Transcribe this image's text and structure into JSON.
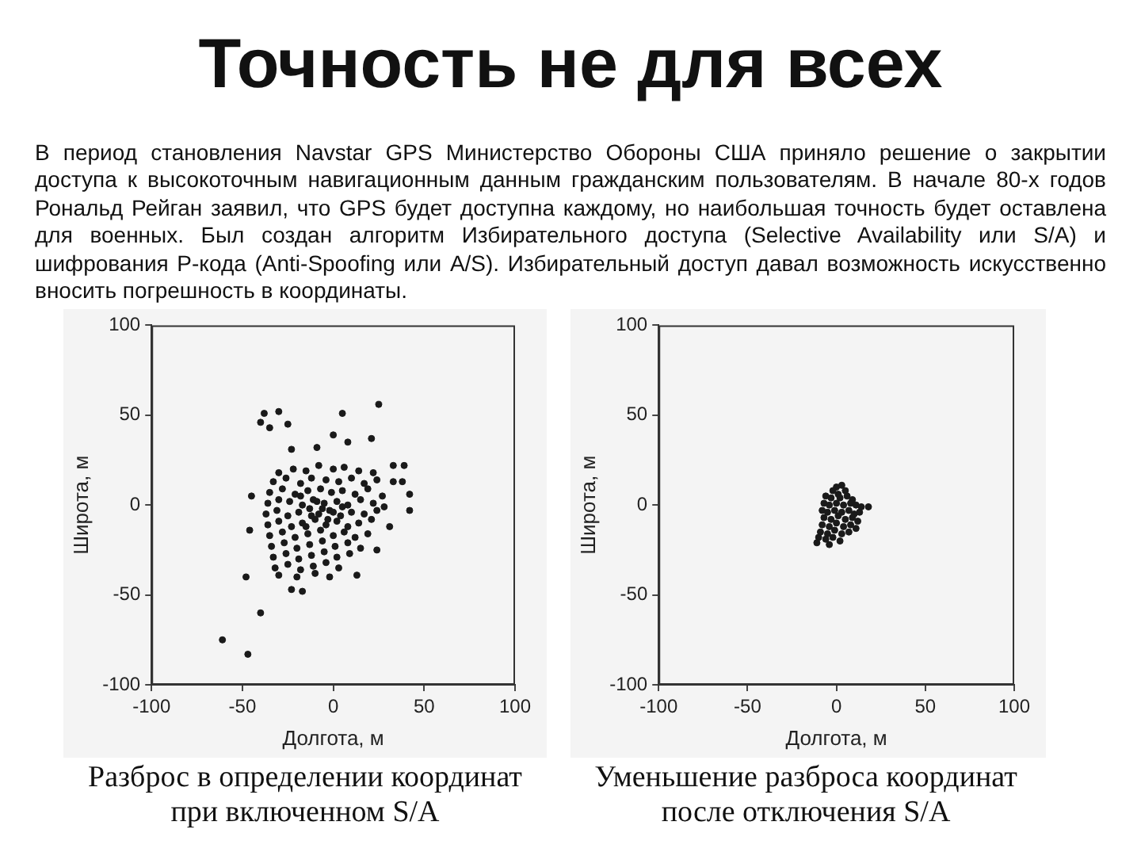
{
  "chart_data": [
    {
      "type": "other",
      "title": "Точность не для всех",
      "annotations": [
        "В период становления Navstar GPS Министерство Обороны США приняло решение о закрытии доступа к высокоточным навигационным данным гражданским пользователям. В начале 80-х годов Рональд Рейган заявил, что GPS будет доступна каждому, но наибольшая точность будет оставлена для военных. Был создан алгоритм Избирательного доступа (Selective Availability или S/A) и шифрования Р-кода (Anti-Spoofing или A/S). Избирательный доступ давал возможность искусственно вносить погрешность в координаты."
      ]
    },
    {
      "type": "scatter",
      "xlabel": "Долгота, м",
      "ylabel": "Широта, м",
      "xlim": [
        -100,
        100
      ],
      "ylim": [
        -100,
        100
      ],
      "xticks": [
        -100,
        -50,
        0,
        50,
        100
      ],
      "yticks": [
        -100,
        -50,
        0,
        50,
        100
      ],
      "marker": "circle",
      "annotations": [
        "Разброс в определении координат при включенном S/A"
      ],
      "series": [
        {
          "color": "#1a1a1a",
          "x": [
            -38,
            -30,
            -40,
            -35,
            -25,
            5,
            25,
            21,
            0,
            8,
            -23,
            -9,
            -45,
            -46,
            -48,
            -40,
            -61,
            -47,
            -23,
            -17,
            13,
            31,
            42,
            42,
            38,
            33,
            39,
            33,
            24,
            -30,
            -22,
            -15,
            -8,
            0,
            6,
            14,
            22,
            -33,
            -26,
            -18,
            -12,
            -4,
            3,
            10,
            17,
            24,
            -35,
            -28,
            -21,
            -14,
            -7,
            -1,
            5,
            12,
            19,
            27,
            -36,
            -30,
            -24,
            -17,
            -11,
            -5,
            2,
            8,
            15,
            22,
            28,
            -37,
            -31,
            -25,
            -19,
            -13,
            -8,
            -2,
            4,
            10,
            17,
            24,
            -36,
            -30,
            -23,
            -17,
            -10,
            -4,
            2,
            8,
            14,
            21,
            -35,
            -28,
            -21,
            -14,
            -7,
            0,
            6,
            12,
            19,
            -34,
            -27,
            -20,
            -13,
            -6,
            1,
            8,
            15,
            -33,
            -26,
            -19,
            -12,
            -5,
            2,
            9,
            -32,
            -25,
            -18,
            -11,
            -4,
            3,
            -30,
            -20,
            -10,
            -2,
            -12,
            -6,
            -3,
            -9,
            -15,
            0,
            -18,
            5
          ],
          "values": [
            51,
            52,
            46,
            43,
            45,
            51,
            56,
            37,
            39,
            35,
            31,
            32,
            5,
            -14,
            -40,
            -60,
            -75,
            -83,
            -47,
            -48,
            -39,
            -12,
            6,
            -3,
            13,
            13,
            22,
            22,
            -25,
            18,
            20,
            19,
            22,
            20,
            21,
            19,
            18,
            13,
            15,
            12,
            15,
            14,
            13,
            15,
            12,
            14,
            7,
            9,
            6,
            8,
            9,
            7,
            8,
            6,
            9,
            5,
            1,
            3,
            2,
            0,
            3,
            1,
            2,
            0,
            3,
            1,
            -1,
            -5,
            -3,
            -6,
            -4,
            -2,
            -5,
            -3,
            -6,
            -4,
            -5,
            -3,
            -11,
            -9,
            -12,
            -10,
            -8,
            -11,
            -9,
            -12,
            -10,
            -8,
            -17,
            -15,
            -18,
            -16,
            -14,
            -17,
            -15,
            -18,
            -16,
            -23,
            -21,
            -24,
            -22,
            -20,
            -23,
            -21,
            -24,
            -29,
            -27,
            -30,
            -28,
            -26,
            -29,
            -27,
            -35,
            -33,
            -36,
            -34,
            -32,
            -35,
            -39,
            -40,
            -38,
            -40,
            -6,
            -2,
            -8,
            2,
            -12,
            -4,
            5,
            -1
          ]
        }
      ]
    },
    {
      "type": "scatter",
      "xlabel": "Долгота, м",
      "ylabel": "Широта, м",
      "xlim": [
        -100,
        100
      ],
      "ylim": [
        -100,
        100
      ],
      "xticks": [
        -100,
        -50,
        0,
        50,
        100
      ],
      "yticks": [
        -100,
        -50,
        0,
        50,
        100
      ],
      "marker": "circle",
      "annotations": [
        "Уменьшение разброса координат после отключения S/A"
      ],
      "series": [
        {
          "color": "#1a1a1a",
          "x": [
            0,
            3,
            -2,
            5,
            1,
            -6,
            -3,
            2,
            6,
            9,
            -7,
            -4,
            0,
            4,
            8,
            11,
            14,
            18,
            -8,
            -5,
            -1,
            3,
            7,
            10,
            13,
            -7,
            -3,
            1,
            5,
            9,
            12,
            -8,
            -4,
            0,
            4,
            8,
            11,
            -9,
            -5,
            -1,
            3,
            7,
            -10,
            -6,
            -2,
            2,
            -11,
            -4
          ],
          "values": [
            10,
            11,
            8,
            8,
            6,
            5,
            4,
            4,
            5,
            3,
            1,
            0,
            1,
            0,
            1,
            0,
            -1,
            -1,
            -3,
            -4,
            -3,
            -4,
            -3,
            -5,
            -4,
            -7,
            -8,
            -6,
            -8,
            -7,
            -9,
            -11,
            -12,
            -10,
            -12,
            -11,
            -13,
            -15,
            -16,
            -14,
            -16,
            -15,
            -18,
            -19,
            -18,
            -20,
            -21,
            -22
          ]
        }
      ]
    }
  ]
}
